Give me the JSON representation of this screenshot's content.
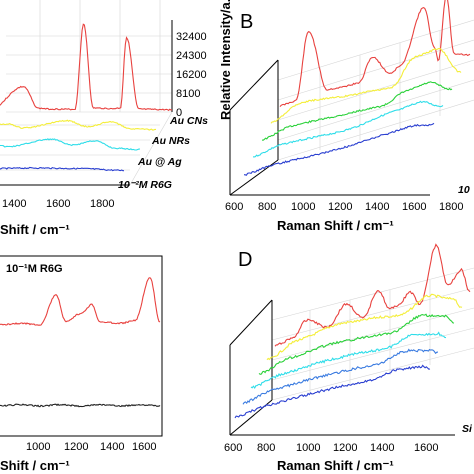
{
  "panels": [
    {
      "id": "A",
      "label": "",
      "type": "3d-waterfall-spectra",
      "x_ticks": [
        "1400",
        "1600",
        "1800"
      ],
      "x_label": "Shift / cm⁻¹",
      "z_ticks": [
        "32400",
        "24300",
        "16200",
        "8100",
        "0"
      ],
      "z_label": "Relative Intensity/a.u.",
      "series": [
        {
          "name": "Au CNs",
          "color": "#e8423f"
        },
        {
          "name": "Au NRs",
          "color": "#f4ee3a"
        },
        {
          "name": "Au @ Ag",
          "color": "#2fdde9"
        },
        {
          "name": "10⁻²M R6G",
          "color": "#2a3fd0"
        }
      ]
    },
    {
      "id": "B",
      "label": "B",
      "type": "3d-waterfall-spectra",
      "x_ticks": [
        "600",
        "800",
        "1000",
        "1200",
        "1400",
        "1600",
        "1800"
      ],
      "x_label": "Raman Shift / cm⁻¹",
      "z_label": "Relative Intensity/a.u.",
      "series_label_partial": "10",
      "colors": [
        "#e8423f",
        "#f4ee3a",
        "#2bd13a",
        "#2fdde9",
        "#2a3fd0"
      ]
    },
    {
      "id": "C",
      "label": "",
      "type": "2d-spectra",
      "annotation": "10⁻¹M R6G",
      "x_ticks": [
        "1000",
        "1200",
        "1400",
        "1600"
      ],
      "x_label": "Shift / cm⁻¹",
      "colors": [
        "#e8423f",
        "#222222"
      ]
    },
    {
      "id": "D",
      "label": "D",
      "type": "3d-waterfall-spectra",
      "x_ticks": [
        "600",
        "800",
        "1000",
        "1200",
        "1400",
        "1600"
      ],
      "x_label": "Raman Shift / cm⁻¹",
      "series_label_partial": "Si",
      "colors": [
        "#e8423f",
        "#f4ee3a",
        "#2bd13a",
        "#2fdde9",
        "#3a7be0",
        "#2a3fd0"
      ]
    }
  ],
  "chart_data": [
    {
      "panel": "A",
      "type": "line",
      "title": "",
      "xlabel": "Shift / cm⁻¹",
      "ylabel": "Relative Intensity/a.u.",
      "xlim": [
        1200,
        1800
      ],
      "zlim": [
        0,
        32400
      ],
      "series": [
        {
          "name": "Au CNs",
          "x": [
            1200,
            1310,
            1360,
            1400,
            1480,
            1509,
            1540,
            1575,
            1600,
            1630,
            1650,
            1690,
            1720,
            1770,
            1800
          ],
          "values": [
            1000,
            9500,
            1400,
            1100,
            1000,
            33000,
            1500,
            1400,
            1200,
            1500,
            28000,
            1100,
            1000,
            900,
            800
          ]
        },
        {
          "name": "Au NRs",
          "x": [
            1200,
            1310,
            1360,
            1509,
            1575,
            1650,
            1720,
            1800
          ],
          "values": [
            1000,
            3000,
            1500,
            4200,
            2000,
            3800,
            1200,
            900
          ]
        },
        {
          "name": "Au @ Ag",
          "x": [
            1200,
            1310,
            1360,
            1509,
            1575,
            1650,
            1720,
            1800
          ],
          "values": [
            1000,
            3500,
            2000,
            4800,
            2600,
            4200,
            1400,
            900
          ]
        },
        {
          "name": "10⁻²M R6G",
          "x": [
            1200,
            1310,
            1509,
            1650,
            1800
          ],
          "values": [
            700,
            1200,
            1500,
            1300,
            600
          ]
        }
      ]
    },
    {
      "panel": "B",
      "type": "line",
      "xlabel": "Raman Shift / cm⁻¹",
      "ylabel": "Relative Intensity/a.u.",
      "xlim": [
        600,
        1800
      ],
      "series": [
        {
          "x": [
            600,
            700,
            780,
            900,
            1000,
            1100,
            1180,
            1300,
            1360,
            1509,
            1575,
            1600,
            1650,
            1700,
            1800
          ],
          "values": [
            5,
            6,
            60,
            8,
            7,
            7,
            25,
            8,
            12,
            55,
            20,
            8,
            60,
            10,
            6
          ]
        },
        {
          "x": [
            600,
            780,
            1180,
            1360,
            1509,
            1650,
            1800
          ],
          "values": [
            5,
            15,
            10,
            8,
            28,
            30,
            6
          ]
        },
        {
          "x": [
            600,
            780,
            1180,
            1360,
            1509,
            1650,
            1800
          ],
          "values": [
            5,
            10,
            8,
            7,
            14,
            16,
            6
          ]
        },
        {
          "x": [
            600,
            780,
            1180,
            1509,
            1650,
            1800
          ],
          "values": [
            5,
            9,
            7,
            12,
            14,
            6
          ]
        },
        {
          "x": [
            600,
            780,
            1180,
            1509,
            1650,
            1800
          ],
          "values": [
            4,
            6,
            5,
            7,
            8,
            5
          ]
        }
      ]
    },
    {
      "panel": "C",
      "type": "line",
      "xlabel": "Shift / cm⁻¹",
      "xlim": [
        900,
        1700
      ],
      "series": [
        {
          "x": [
            900,
            1000,
            1100,
            1180,
            1230,
            1300,
            1360,
            1400,
            1500,
            1575,
            1650,
            1700
          ],
          "values": [
            10,
            11,
            10,
            32,
            12,
            18,
            25,
            12,
            11,
            13,
            45,
            12
          ]
        },
        {
          "x": [
            900,
            1000,
            1100,
            1200,
            1300,
            1400,
            1500,
            1600,
            1700
          ],
          "values": [
            0,
            1,
            0,
            1,
            0,
            1,
            0,
            1,
            0
          ]
        }
      ]
    },
    {
      "panel": "D",
      "type": "line",
      "xlabel": "Raman Shift / cm⁻¹",
      "xlim": [
        600,
        1700
      ],
      "series": [
        {
          "x": [
            600,
            700,
            780,
            900,
            1000,
            1100,
            1180,
            1250,
            1300,
            1360,
            1420,
            1509,
            1575,
            1650,
            1700
          ],
          "values": [
            5,
            8,
            20,
            10,
            25,
            10,
            30,
            12,
            14,
            22,
            10,
            55,
            20,
            30,
            10
          ]
        },
        {
          "x": [
            600,
            780,
            1000,
            1180,
            1360,
            1509,
            1650,
            1700
          ],
          "values": [
            5,
            15,
            20,
            18,
            15,
            25,
            18,
            8
          ]
        },
        {
          "x": [
            600,
            780,
            1000,
            1180,
            1360,
            1509,
            1650,
            1700
          ],
          "values": [
            5,
            12,
            15,
            14,
            12,
            20,
            15,
            8
          ]
        },
        {
          "x": [
            600,
            780,
            1000,
            1180,
            1360,
            1509,
            1650,
            1700
          ],
          "values": [
            5,
            10,
            12,
            12,
            10,
            16,
            12,
            7
          ]
        },
        {
          "x": [
            600,
            780,
            1000,
            1180,
            1360,
            1509,
            1650,
            1700
          ],
          "values": [
            4,
            9,
            10,
            10,
            9,
            14,
            10,
            6
          ]
        },
        {
          "x": [
            600,
            780,
            1000,
            1180,
            1360,
            1509,
            1650,
            1700
          ],
          "values": [
            4,
            7,
            8,
            8,
            7,
            10,
            8,
            5
          ]
        }
      ]
    }
  ]
}
